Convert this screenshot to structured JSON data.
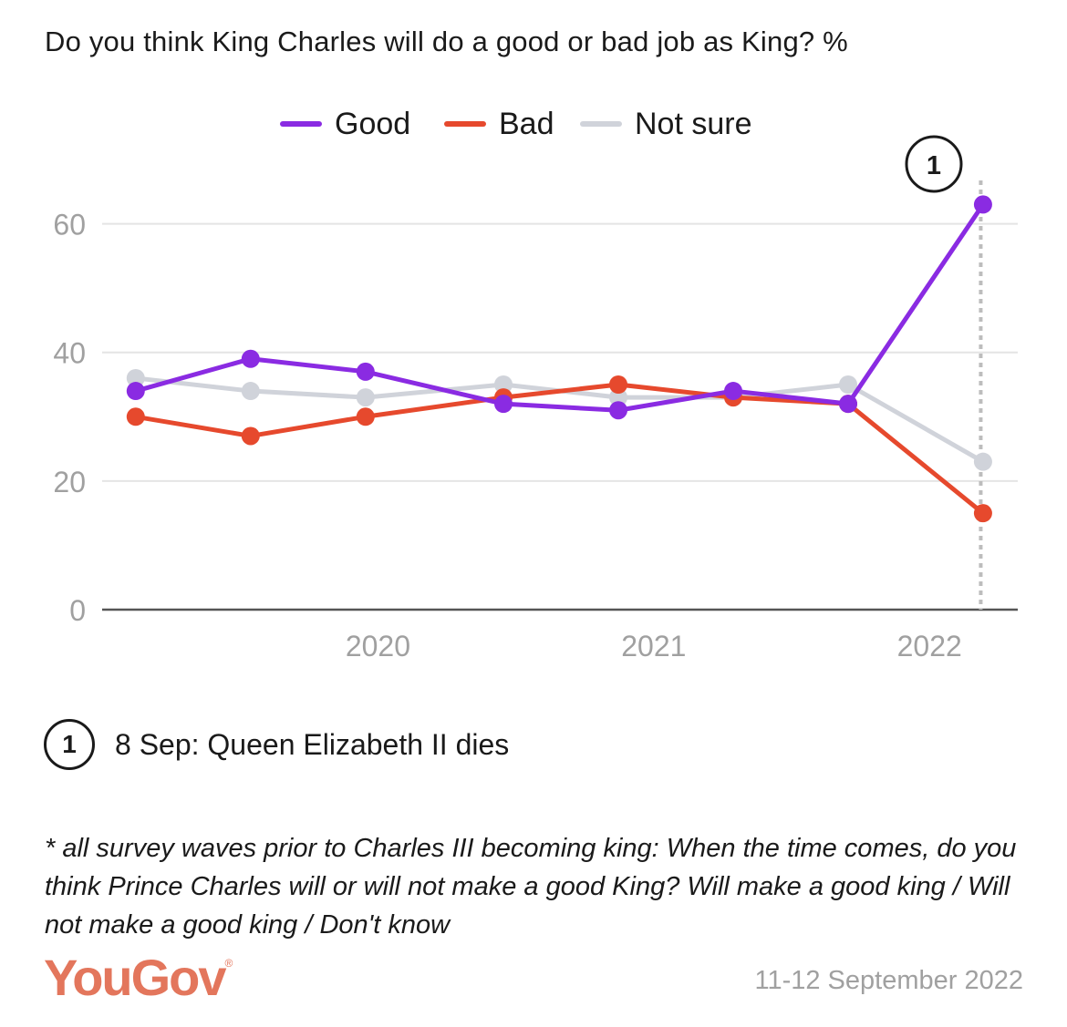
{
  "title": "Do you think King Charles will do a good or bad job as King? %",
  "colors": {
    "good": "#8a2be2",
    "bad": "#e6492d",
    "not_sure": "#d0d3da",
    "axis": "#555555",
    "grid": "#e4e4e4",
    "tick_text": "#a0a0a0",
    "brand": "#e3765c"
  },
  "chart_data": {
    "type": "line",
    "title": "Do you think King Charles will do a good or bad job as King? %",
    "x": [
      "2019-08",
      "2020-01",
      "2020-06",
      "2020-12",
      "2021-05",
      "2021-10",
      "2022-03",
      "2022-09-11"
    ],
    "x_ticks": [
      "2020",
      "2021",
      "2022"
    ],
    "y_ticks": [
      "0",
      "20",
      "40",
      "60"
    ],
    "ylim": [
      0,
      70
    ],
    "grid": true,
    "legend_position": "top-center",
    "series": [
      {
        "name": "Good",
        "color": "#8a2be2",
        "values": [
          34,
          39,
          37,
          32,
          31,
          34,
          32,
          63
        ]
      },
      {
        "name": "Bad",
        "color": "#e6492d",
        "values": [
          30,
          27,
          30,
          33,
          35,
          33,
          32,
          15
        ]
      },
      {
        "name": "Not sure",
        "color": "#d0d3da",
        "values": [
          36,
          34,
          33,
          35,
          33,
          33,
          35,
          23
        ]
      }
    ],
    "annotations": [
      {
        "label": "1",
        "x": "2022-09-08",
        "text": "8 Sep: Queen Elizabeth II dies"
      }
    ]
  },
  "note": {
    "badge": "1",
    "text": "8 Sep: Queen Elizabeth II dies"
  },
  "footnote": "* all survey waves prior to Charles III becoming king: When the time comes, do you think Prince Charles will or will not make a good King? Will make a good king / Will not make a good king / Don't know",
  "logo": {
    "text": "YouGov",
    "mark": "®"
  },
  "date": "11-12 September 2022"
}
